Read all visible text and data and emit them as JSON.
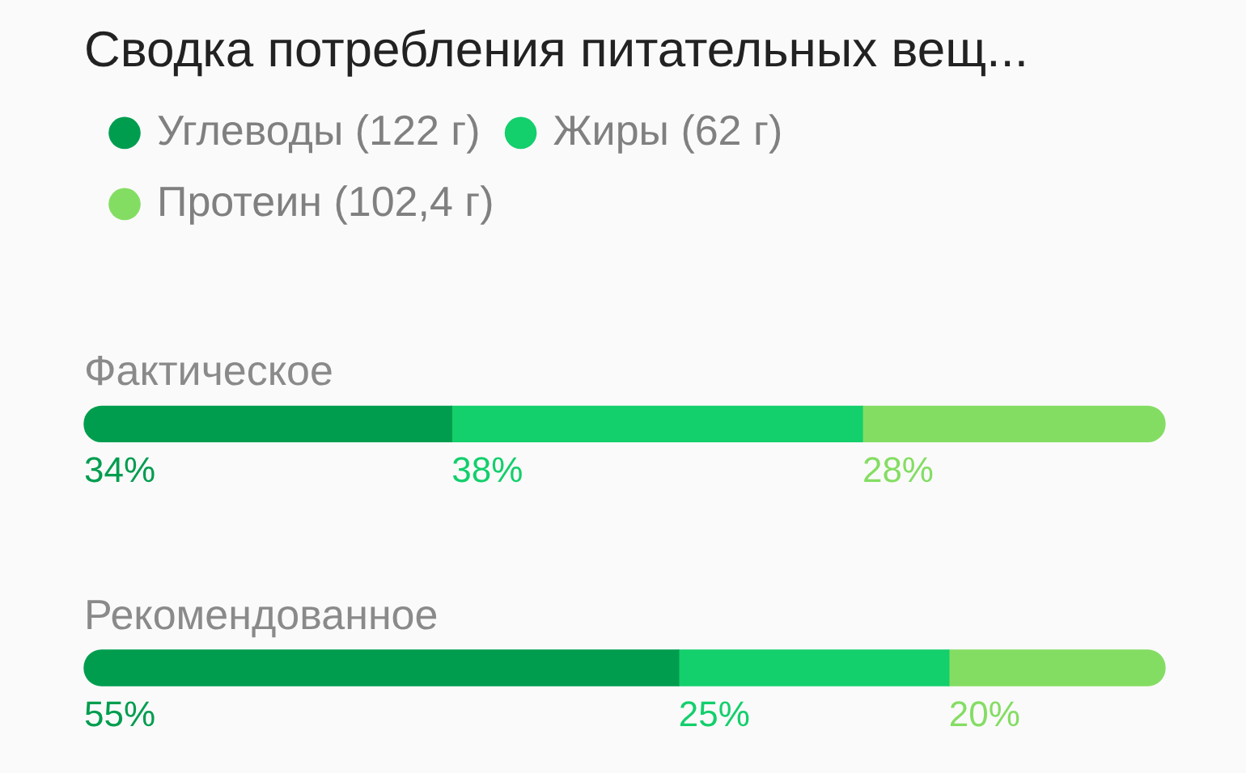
{
  "chart_data": {
    "type": "bar",
    "orientation": "horizontal",
    "stacked": true,
    "title": "Сводка потребления питательных вещ...",
    "categories": [
      "Фактическое",
      "Рекомендованное"
    ],
    "series": [
      {
        "name": "Углеводы (122 г)",
        "color": "#009d4f",
        "values": [
          34,
          55
        ],
        "value_labels": [
          "34%",
          "55%"
        ]
      },
      {
        "name": "Жиры (62 г)",
        "color": "#13cf6c",
        "values": [
          38,
          25
        ],
        "value_labels": [
          "38%",
          "25%"
        ]
      },
      {
        "name": "Протеин (102,4 г)",
        "color": "#84dd63",
        "values": [
          28,
          20
        ],
        "value_labels": [
          "28%",
          "20%"
        ]
      }
    ],
    "tick_labels": false,
    "grid": false,
    "legend": "top left",
    "marker": "circle"
  }
}
